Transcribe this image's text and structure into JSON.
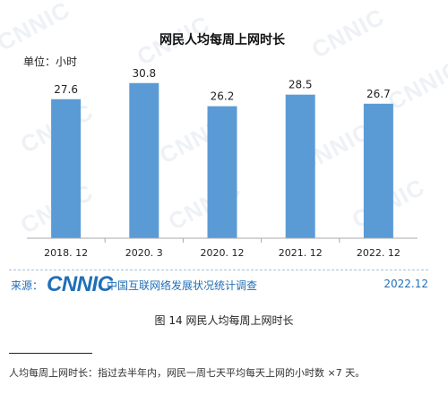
{
  "watermark": "CNNIC",
  "chart_data": {
    "type": "bar",
    "title": "网民人均每周上网时长",
    "unit_label": "单位：小时",
    "categories": [
      "2018. 12",
      "2020. 3",
      "2020. 12",
      "2021. 12",
      "2022. 12"
    ],
    "values": [
      27.6,
      30.8,
      26.2,
      28.5,
      26.7
    ],
    "data_labels": [
      "27.6",
      "30.8",
      "26.2",
      "28.5",
      "26.7"
    ],
    "bar_color": "#5b9bd5",
    "ylim": [
      0,
      32
    ],
    "grid": false,
    "legend": "none"
  },
  "source": {
    "label": "来源：",
    "logo": "CNNIC",
    "org": "中国互联网络发展状况统计调查",
    "date": "2022.12"
  },
  "caption": "图 14  网民人均每周上网时长",
  "footnote": "人均每周上网时长：指过去半年内，网民一周七天平均每天上网的小时数 ×7 天。"
}
